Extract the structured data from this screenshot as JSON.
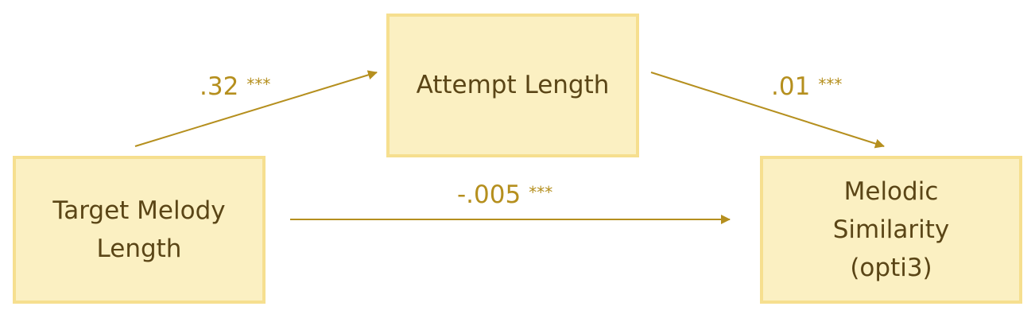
{
  "nodes": {
    "target": {
      "lines": [
        "Target Melody",
        "Length"
      ]
    },
    "attempt": {
      "lines": [
        "Attempt Length"
      ]
    },
    "similarity": {
      "lines": [
        "Melodic",
        "Similarity",
        "(opti3)"
      ]
    }
  },
  "edges": {
    "target_to_attempt": {
      "coefficient": ".32",
      "significance": "***"
    },
    "attempt_to_similarity": {
      "coefficient": ".01",
      "significance": "***"
    },
    "target_to_similarity": {
      "coefficient": "-.005",
      "significance": "***"
    }
  },
  "colors": {
    "box_fill": "#fbf0c2",
    "box_border": "#f6df8f",
    "node_text": "#5a4516",
    "arrow": "#b58f1e",
    "label_text": "#b58f1e"
  }
}
